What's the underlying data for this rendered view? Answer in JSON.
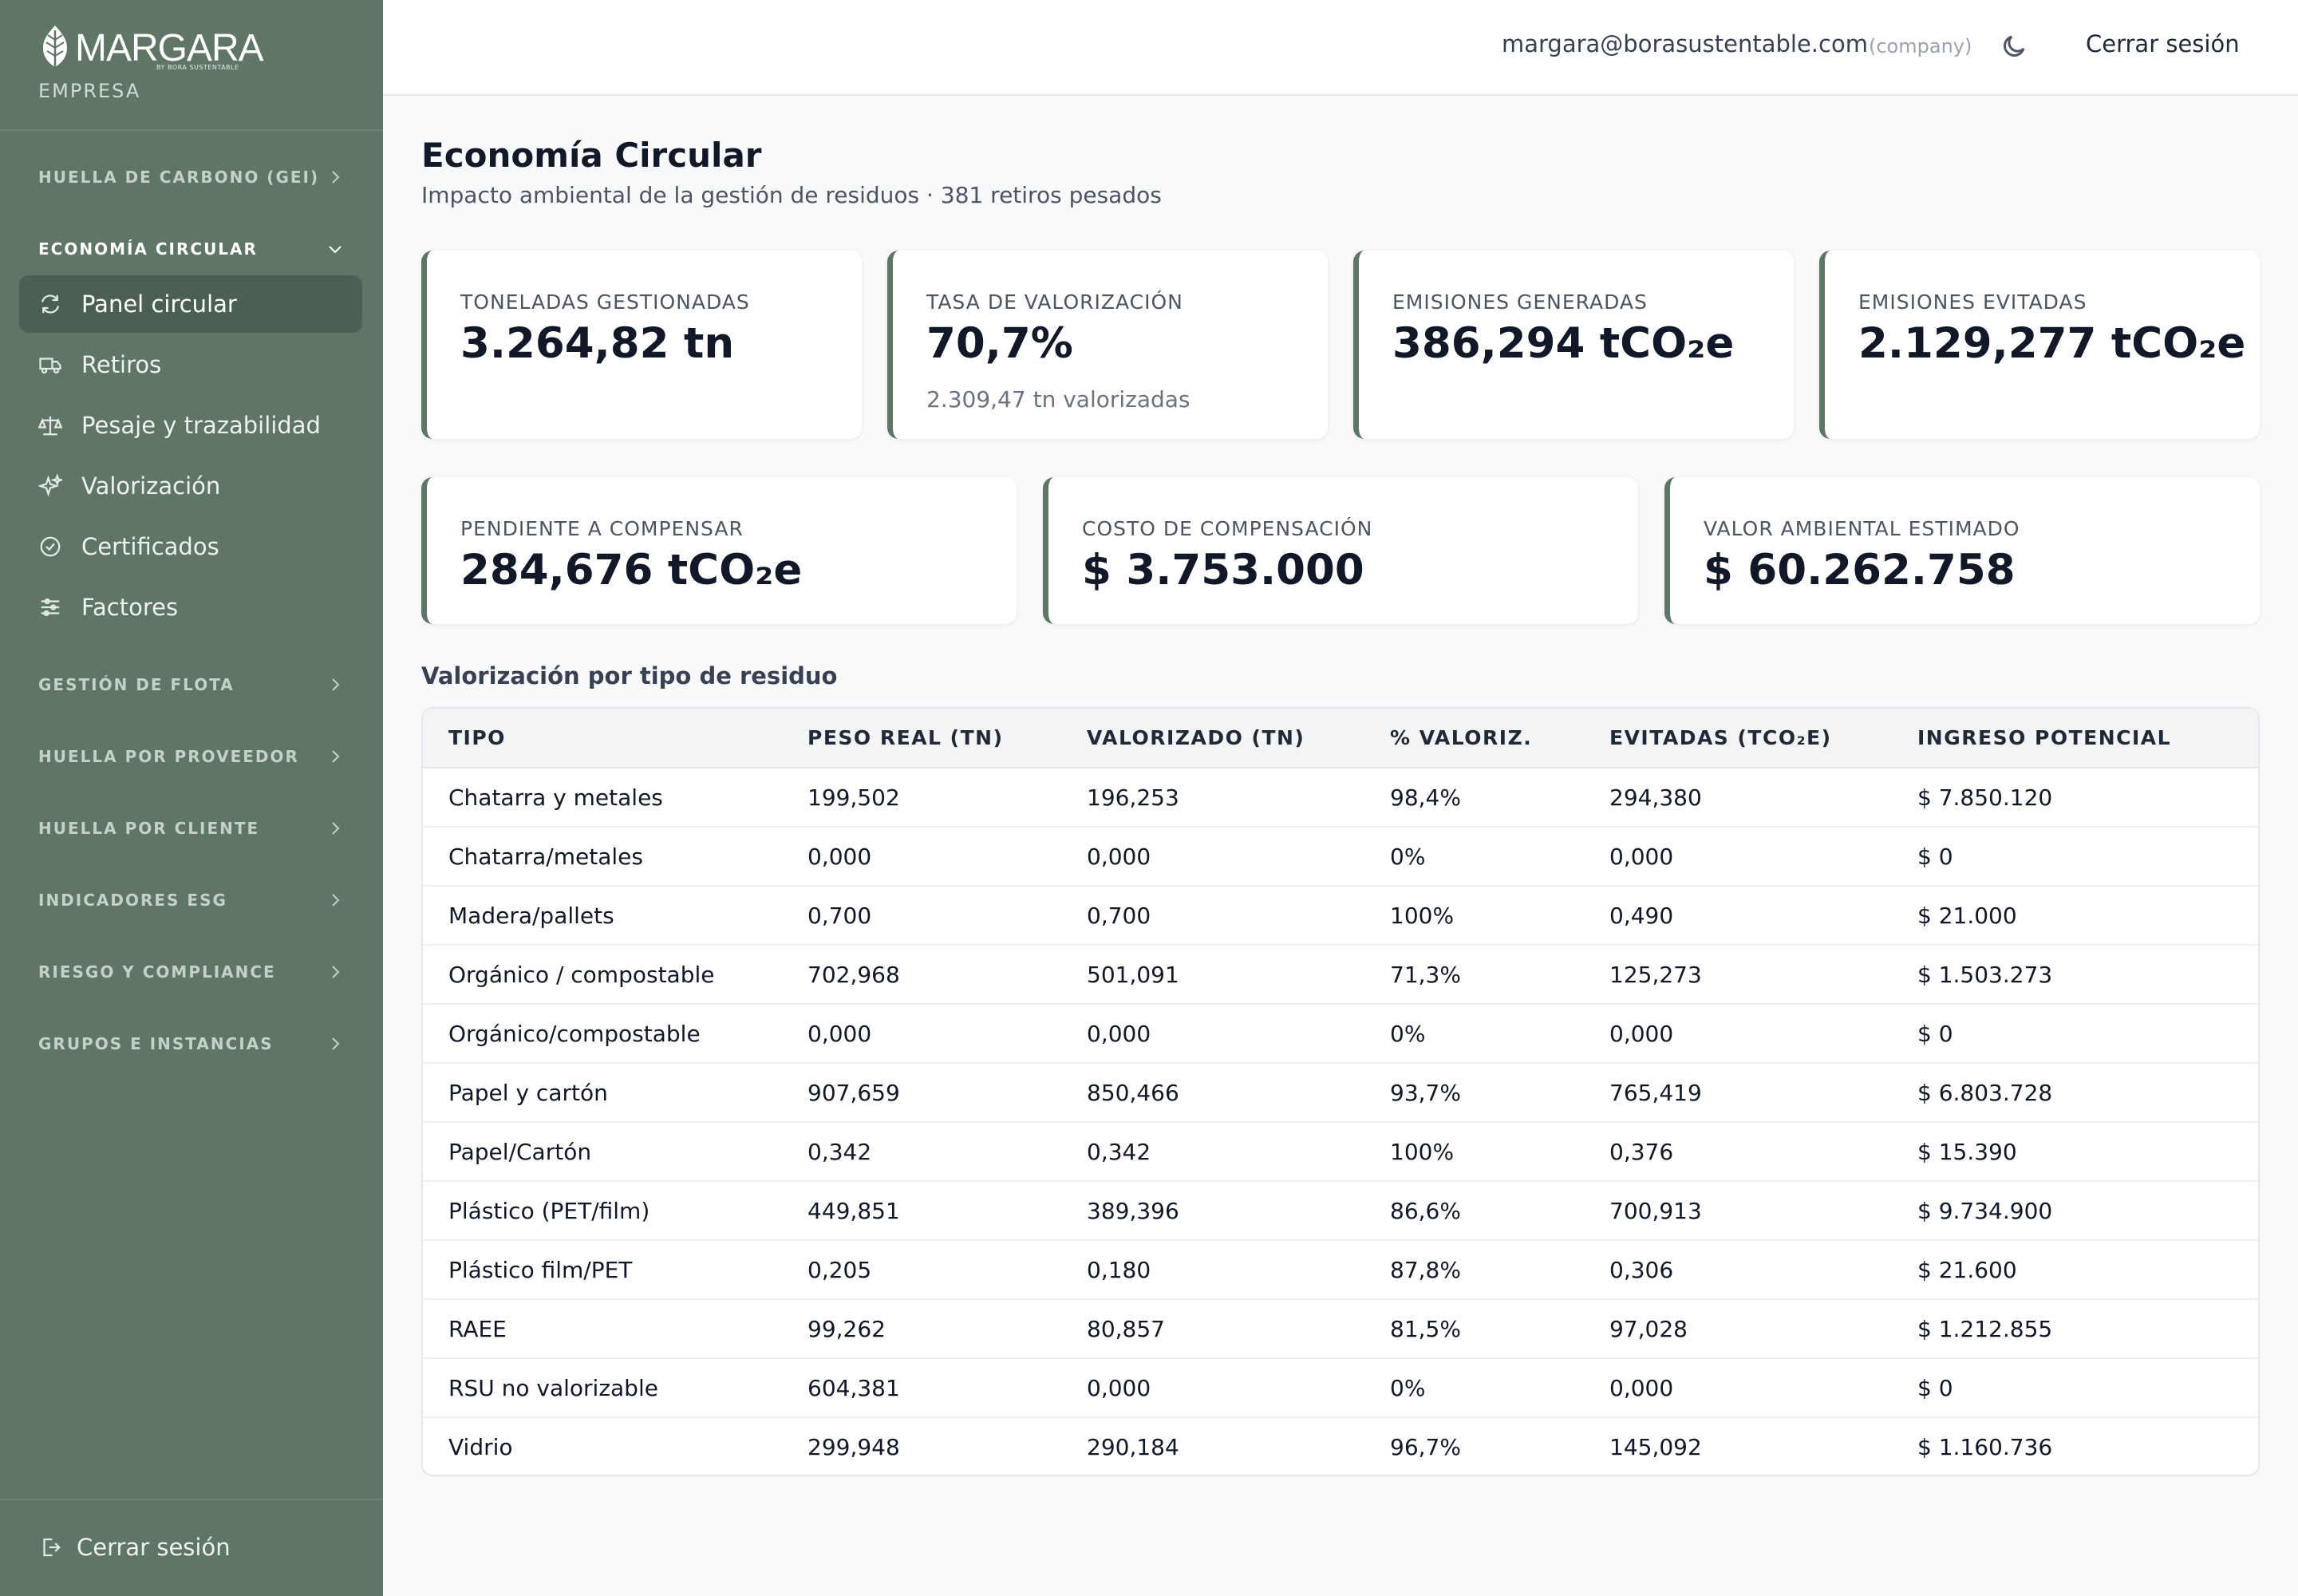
{
  "brand": {
    "name": "MARGARA",
    "tagline": "BY BORA SUSTENTABLE",
    "role": "EMPRESA"
  },
  "sidebar": {
    "sections": [
      {
        "label": "HUELLA DE CARBONO (GEI)",
        "open": false
      },
      {
        "label": "ECONOMÍA CIRCULAR",
        "open": true
      },
      {
        "label": "GESTIÓN DE FLOTA",
        "open": false
      },
      {
        "label": "HUELLA POR PROVEEDOR",
        "open": false
      },
      {
        "label": "HUELLA POR CLIENTE",
        "open": false
      },
      {
        "label": "INDICADORES ESG",
        "open": false
      },
      {
        "label": "RIESGO Y COMPLIANCE",
        "open": false
      },
      {
        "label": "GRUPOS E INSTANCIAS",
        "open": false
      }
    ],
    "items": [
      {
        "label": "Panel circular",
        "icon": "refresh-icon",
        "active": true
      },
      {
        "label": "Retiros",
        "icon": "truck-icon",
        "active": false
      },
      {
        "label": "Pesaje y trazabilidad",
        "icon": "scale-icon",
        "active": false
      },
      {
        "label": "Valorización",
        "icon": "sparkles-icon",
        "active": false
      },
      {
        "label": "Certificados",
        "icon": "check-circle-icon",
        "active": false
      },
      {
        "label": "Factores",
        "icon": "sliders-icon",
        "active": false
      }
    ],
    "logout_label": "Cerrar sesión"
  },
  "header": {
    "email": "margara@borasustentable.com",
    "role": "(company)",
    "theme_icon": "moon-icon",
    "logout_label": "Cerrar sesión"
  },
  "page": {
    "title": "Economía Circular",
    "subtitle": "Impacto ambiental de la gestión de residuos · 381 retiros pesados"
  },
  "kpis_row1": [
    {
      "label": "TONELADAS GESTIONADAS",
      "value": "3.264,82 tn",
      "note": ""
    },
    {
      "label": "TASA DE VALORIZACIÓN",
      "value": "70,7%",
      "note": "2.309,47 tn valorizadas"
    },
    {
      "label": "EMISIONES GENERADAS",
      "value": "386,294 tCO₂e",
      "note": ""
    },
    {
      "label": "EMISIONES EVITADAS",
      "value": "2.129,277 tCO₂e",
      "note": ""
    }
  ],
  "kpis_row2": [
    {
      "label": "PENDIENTE A COMPENSAR",
      "value": "284,676 tCO₂e"
    },
    {
      "label": "COSTO DE COMPENSACIÓN",
      "value": "$ 3.753.000"
    },
    {
      "label": "VALOR AMBIENTAL ESTIMADO",
      "value": "$ 60.262.758"
    }
  ],
  "table": {
    "title": "Valorización por tipo de residuo",
    "columns": [
      "TIPO",
      "PESO REAL (TN)",
      "VALORIZADO (TN)",
      "% VALORIZ.",
      "EVITADAS (TCO₂E)",
      "INGRESO POTENCIAL"
    ],
    "rows": [
      [
        "Chatarra y metales",
        "199,502",
        "196,253",
        "98,4%",
        "294,380",
        "$ 7.850.120"
      ],
      [
        "Chatarra/metales",
        "0,000",
        "0,000",
        "0%",
        "0,000",
        "$ 0"
      ],
      [
        "Madera/pallets",
        "0,700",
        "0,700",
        "100%",
        "0,490",
        "$ 21.000"
      ],
      [
        "Orgánico / compostable",
        "702,968",
        "501,091",
        "71,3%",
        "125,273",
        "$ 1.503.273"
      ],
      [
        "Orgánico/compostable",
        "0,000",
        "0,000",
        "0%",
        "0,000",
        "$ 0"
      ],
      [
        "Papel y cartón",
        "907,659",
        "850,466",
        "93,7%",
        "765,419",
        "$ 6.803.728"
      ],
      [
        "Papel/Cartón",
        "0,342",
        "0,342",
        "100%",
        "0,376",
        "$ 15.390"
      ],
      [
        "Plástico (PET/film)",
        "449,851",
        "389,396",
        "86,6%",
        "700,913",
        "$ 9.734.900"
      ],
      [
        "Plástico film/PET",
        "0,205",
        "0,180",
        "87,8%",
        "0,306",
        "$ 21.600"
      ],
      [
        "RAEE",
        "99,262",
        "80,857",
        "81,5%",
        "97,028",
        "$ 1.212.855"
      ],
      [
        "RSU no valorizable",
        "604,381",
        "0,000",
        "0%",
        "0,000",
        "$ 0"
      ],
      [
        "Vidrio",
        "299,948",
        "290,184",
        "96,7%",
        "145,092",
        "$ 1.160.736"
      ]
    ]
  },
  "colors": {
    "sidebar": "#5f7566",
    "sidebar_active": "#4b5f52",
    "accent": "#5f7566"
  }
}
